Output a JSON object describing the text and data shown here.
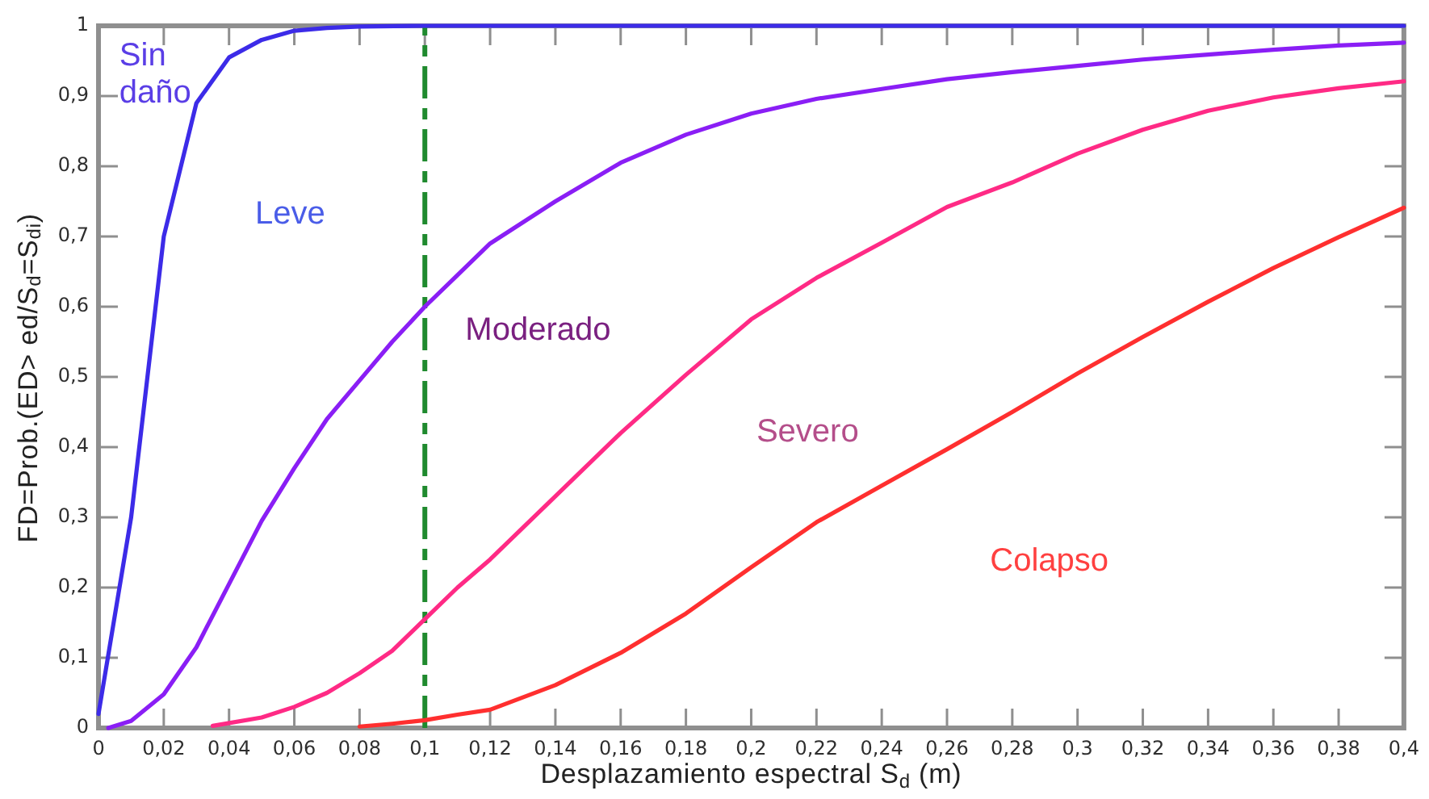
{
  "chart_data": {
    "type": "line",
    "xlabel": "Desplazamiento espectral S$_{d}$ (m)",
    "ylabel": "FD=Prob.(ED> ed/S$_{d}$=S$_{di}$)",
    "xlim": [
      0,
      0.4
    ],
    "xticks": [
      0,
      {
        "value": 0.02,
        "label": "0,02"
      },
      {
        "value": 0.04,
        "label": "0,04"
      },
      {
        "value": 0.06,
        "label": "0,06"
      },
      {
        "value": 0.08,
        "label": "0,08"
      },
      {
        "value": 0.1,
        "label": "0,1"
      },
      {
        "value": 0.12,
        "label": "0,12"
      },
      {
        "value": 0.14,
        "label": "0,14"
      },
      {
        "value": 0.16,
        "label": "0,16"
      },
      {
        "value": 0.18,
        "label": "0,18"
      },
      {
        "value": 0.2,
        "label": "0,2"
      },
      {
        "value": 0.22,
        "label": "0,22"
      },
      {
        "value": 0.24,
        "label": "0,24"
      },
      {
        "value": 0.26,
        "label": "0,26"
      },
      {
        "value": 0.28,
        "label": "0,28"
      },
      {
        "value": 0.3,
        "label": "0,3"
      },
      {
        "value": 0.32,
        "label": "0,32"
      },
      {
        "value": 0.34,
        "label": "0,34"
      },
      {
        "value": 0.36,
        "label": "0,36"
      },
      {
        "value": 0.38,
        "label": "0,38"
      },
      {
        "value": 0.4,
        "label": "0,4"
      }
    ],
    "ylim": [
      0,
      1
    ],
    "yticks": [
      0,
      {
        "value": 0.1,
        "label": "0,1"
      },
      {
        "value": 0.2,
        "label": "0,2"
      },
      {
        "value": 0.3,
        "label": "0,3"
      },
      {
        "value": 0.4,
        "label": "0,4"
      },
      {
        "value": 0.5,
        "label": "0,5"
      },
      {
        "value": 0.6,
        "label": "0,6"
      },
      {
        "value": 0.7,
        "label": "0,7"
      },
      {
        "value": 0.8,
        "label": "0,8"
      },
      {
        "value": 0.9,
        "label": "0,9"
      },
      1
    ],
    "grid": false,
    "legend": false,
    "marker": "none",
    "line_style": "solid",
    "series": [
      {
        "color": "#3c2be8",
        "x": [
          0,
          0.01,
          0.02,
          0.03,
          0.04,
          0.05,
          0.06,
          0.07,
          0.08,
          0.1,
          0.2,
          0.3,
          0.4
        ],
        "values": [
          0.02,
          0.3,
          0.7,
          0.89,
          0.955,
          0.98,
          0.993,
          0.997,
          0.999,
          1,
          1,
          1,
          1
        ]
      },
      {
        "color": "#8a1ef5",
        "x": [
          0.003,
          0.01,
          0.02,
          0.03,
          0.04,
          0.05,
          0.06,
          0.07,
          0.08,
          0.09,
          0.1,
          0.11,
          0.12,
          0.14,
          0.16,
          0.18,
          0.2,
          0.22,
          0.24,
          0.26,
          0.28,
          0.3,
          0.32,
          0.34,
          0.36,
          0.38,
          0.4
        ],
        "values": [
          0,
          0.01,
          0.048,
          0.115,
          0.205,
          0.295,
          0.37,
          0.44,
          0.495,
          0.55,
          0.6,
          0.645,
          0.69,
          0.75,
          0.805,
          0.845,
          0.875,
          0.896,
          0.91,
          0.924,
          0.934,
          0.943,
          0.952,
          0.959,
          0.966,
          0.972,
          0.976
        ]
      },
      {
        "color": "#ff2a85",
        "x": [
          0.035,
          0.05,
          0.06,
          0.07,
          0.08,
          0.09,
          0.1,
          0.11,
          0.12,
          0.14,
          0.16,
          0.18,
          0.2,
          0.22,
          0.24,
          0.26,
          0.28,
          0.3,
          0.32,
          0.34,
          0.36,
          0.38,
          0.4
        ],
        "values": [
          0.003,
          0.015,
          0.03,
          0.05,
          0.078,
          0.11,
          0.155,
          0.2,
          0.24,
          0.33,
          0.42,
          0.503,
          0.582,
          0.641,
          0.691,
          0.742,
          0.777,
          0.818,
          0.852,
          0.879,
          0.898,
          0.911,
          0.921
        ]
      },
      {
        "color": "#ff2f2f",
        "x": [
          0.08,
          0.09,
          0.1,
          0.11,
          0.12,
          0.14,
          0.16,
          0.18,
          0.2,
          0.22,
          0.24,
          0.26,
          0.28,
          0.3,
          0.32,
          0.34,
          0.36,
          0.38,
          0.4
        ],
        "values": [
          0.002,
          0.006,
          0.011,
          0.019,
          0.026,
          0.061,
          0.107,
          0.163,
          0.229,
          0.293,
          0.345,
          0.397,
          0.45,
          0.505,
          0.557,
          0.607,
          0.655,
          0.699,
          0.741
        ]
      }
    ],
    "ref_lines": [
      {
        "axis": "x",
        "value": 0.1,
        "color": "#1f8a2e",
        "line_style": "dashed"
      }
    ],
    "annotations": [
      "Sin\ndaño",
      "Leve",
      "Moderado",
      "Severo",
      "Colapso"
    ]
  }
}
